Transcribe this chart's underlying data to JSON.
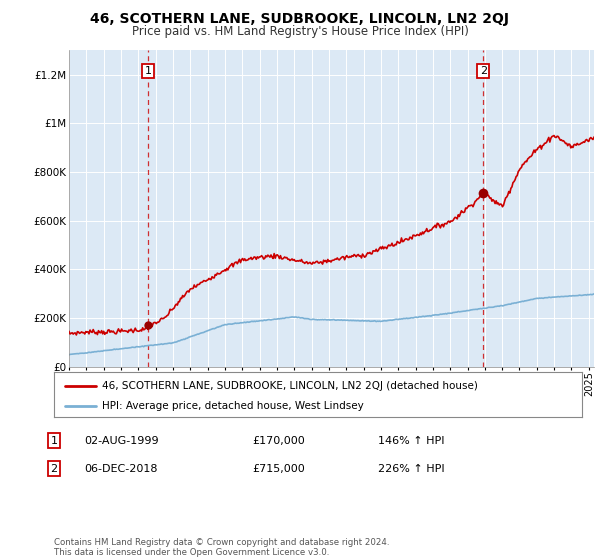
{
  "title": "46, SCOTHERN LANE, SUDBROOKE, LINCOLN, LN2 2QJ",
  "subtitle": "Price paid vs. HM Land Registry's House Price Index (HPI)",
  "title_fontsize": 10,
  "subtitle_fontsize": 8.5,
  "ylim": [
    0,
    1300000
  ],
  "yticks": [
    0,
    200000,
    400000,
    600000,
    800000,
    1000000,
    1200000
  ],
  "ytick_labels": [
    "£0",
    "£200K",
    "£400K",
    "£600K",
    "£800K",
    "£1M",
    "£1.2M"
  ],
  "legend_items": [
    {
      "label": "46, SCOTHERN LANE, SUDBROOKE, LINCOLN, LN2 2QJ (detached house)",
      "color": "#cc0000",
      "lw": 1.2
    },
    {
      "label": "HPI: Average price, detached house, West Lindsey",
      "color": "#7ab0d4",
      "lw": 1.2
    }
  ],
  "annotation1": {
    "x_label": "02-AUG-1999",
    "price": "£170,000",
    "hpi": "146% ↑ HPI",
    "num": "1"
  },
  "annotation2": {
    "x_label": "06-DEC-2018",
    "price": "£715,000",
    "hpi": "226% ↑ HPI",
    "num": "2"
  },
  "copyright": "Contains HM Land Registry data © Crown copyright and database right 2024.\nThis data is licensed under the Open Government Licence v3.0.",
  "bg_color": "#ffffff",
  "plot_bg_color": "#dce9f5",
  "grid_color": "#ffffff",
  "point1_year": 1999.58,
  "point1_val": 170000,
  "point2_year": 2018.92,
  "point2_val": 715000,
  "xmin": 1995.0,
  "xmax": 2025.3
}
